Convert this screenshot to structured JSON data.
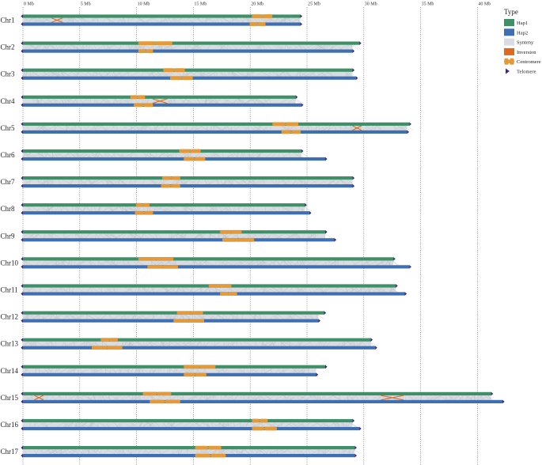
{
  "chart_data": {
    "type": "chromosome-synteny",
    "axis": {
      "unit": "Mb",
      "ticks": [
        0,
        5,
        10,
        15,
        20,
        25,
        30,
        35,
        40
      ],
      "tick_labels": [
        "0 Mb",
        "5 Mb",
        "10 Mb",
        "15 Mb",
        "20 Mb",
        "25 Mb",
        "30 Mb",
        "35 Mb",
        "40 Mb"
      ],
      "range": [
        0,
        42
      ]
    },
    "chromosomes": [
      {
        "name": "Chr1",
        "hap1_len": 24.4,
        "hap2_len": 24.4,
        "hap1_cen": [
          20.2,
          21.9
        ],
        "hap2_cen": [
          20.0,
          21.3
        ],
        "inversions": [
          [
            2.5,
            3.5
          ]
        ]
      },
      {
        "name": "Chr2",
        "hap1_len": 29.6,
        "hap2_len": 29.0,
        "hap1_cen": [
          10.2,
          13.1
        ],
        "hap2_cen": [
          10.2,
          11.4
        ],
        "inversions": []
      },
      {
        "name": "Chr3",
        "hap1_len": 29.0,
        "hap2_len": 29.3,
        "hap1_cen": [
          12.4,
          14.2
        ],
        "hap2_cen": [
          13.0,
          14.9
        ],
        "inversions": []
      },
      {
        "name": "Chr4",
        "hap1_len": 24.0,
        "hap2_len": 24.5,
        "hap1_cen": [
          9.5,
          10.7
        ],
        "hap2_cen": [
          9.8,
          11.4
        ],
        "inversions": [
          [
            11.4,
            12.7
          ]
        ]
      },
      {
        "name": "Chr5",
        "hap1_len": 34.0,
        "hap2_len": 33.8,
        "hap1_cen": [
          22.0,
          24.2
        ],
        "hap2_cen": [
          22.8,
          24.4
        ],
        "inversions": [
          [
            29.0,
            29.8
          ]
        ]
      },
      {
        "name": "Chr6",
        "hap1_len": 24.5,
        "hap2_len": 26.6,
        "hap1_cen": [
          13.8,
          15.6
        ],
        "hap2_cen": [
          14.2,
          16.0
        ],
        "inversions": []
      },
      {
        "name": "Chr7",
        "hap1_len": 29.0,
        "hap2_len": 29.0,
        "hap1_cen": [
          12.3,
          13.8
        ],
        "hap2_cen": [
          12.2,
          13.8
        ],
        "inversions": []
      },
      {
        "name": "Chr8",
        "hap1_len": 24.8,
        "hap2_len": 25.2,
        "hap1_cen": [
          10.0,
          11.1
        ],
        "hap2_cen": [
          9.9,
          11.4
        ],
        "inversions": []
      },
      {
        "name": "Chr9",
        "hap1_len": 26.6,
        "hap2_len": 27.4,
        "hap1_cen": [
          17.4,
          19.2
        ],
        "hap2_cen": [
          17.6,
          20.3
        ],
        "inversions": []
      },
      {
        "name": "Chr10",
        "hap1_len": 32.6,
        "hap2_len": 34.0,
        "hap1_cen": [
          10.2,
          13.2
        ],
        "hap2_cen": [
          11.0,
          13.6
        ],
        "inversions": []
      },
      {
        "name": "Chr11",
        "hap1_len": 32.8,
        "hap2_len": 33.6,
        "hap1_cen": [
          16.4,
          18.3
        ],
        "hap2_cen": [
          17.4,
          18.8
        ],
        "inversions": []
      },
      {
        "name": "Chr12",
        "hap1_len": 26.5,
        "hap2_len": 26.0,
        "hap1_cen": [
          13.6,
          15.8
        ],
        "hap2_cen": [
          13.3,
          15.9
        ],
        "inversions": []
      },
      {
        "name": "Chr13",
        "hap1_len": 30.6,
        "hap2_len": 31.0,
        "hap1_cen": [
          6.9,
          8.3
        ],
        "hap2_cen": [
          6.1,
          8.7
        ],
        "inversions": []
      },
      {
        "name": "Chr14",
        "hap1_len": 26.6,
        "hap2_len": 25.8,
        "hap1_cen": [
          14.2,
          16.9
        ],
        "hap2_cen": [
          14.2,
          16.1
        ],
        "inversions": []
      },
      {
        "name": "Chr15",
        "hap1_len": 41.2,
        "hap2_len": 42.2,
        "hap1_cen": [
          10.6,
          13.0
        ],
        "hap2_cen": [
          11.2,
          13.8
        ],
        "inversions": [
          [
            1.0,
            1.8
          ],
          [
            31.5,
            33.5
          ]
        ]
      },
      {
        "name": "Chr16",
        "hap1_len": 29.0,
        "hap2_len": 29.6,
        "hap1_cen": [
          20.2,
          21.5
        ],
        "hap2_cen": [
          20.2,
          22.3
        ],
        "inversions": []
      },
      {
        "name": "Chr17",
        "hap1_len": 29.2,
        "hap2_len": 29.2,
        "hap1_cen": [
          15.2,
          17.4
        ],
        "hap2_cen": [
          15.2,
          17.8
        ],
        "inversions": []
      }
    ],
    "legend": {
      "title": "Type",
      "position": "top-right",
      "items": [
        {
          "label": "Hap1",
          "kind": "box",
          "color": "#3f8f68"
        },
        {
          "label": "Hap2",
          "kind": "box",
          "color": "#3f6fb3"
        },
        {
          "label": "Synteny",
          "kind": "box",
          "color": "#d9dce1"
        },
        {
          "label": "Inversion",
          "kind": "box",
          "color": "#e0691f"
        },
        {
          "label": "Centromere",
          "kind": "centromere",
          "color": "#e49a38"
        },
        {
          "label": "Telomere",
          "kind": "triangle",
          "color": "#3b2a7a"
        }
      ]
    },
    "grid": true
  }
}
